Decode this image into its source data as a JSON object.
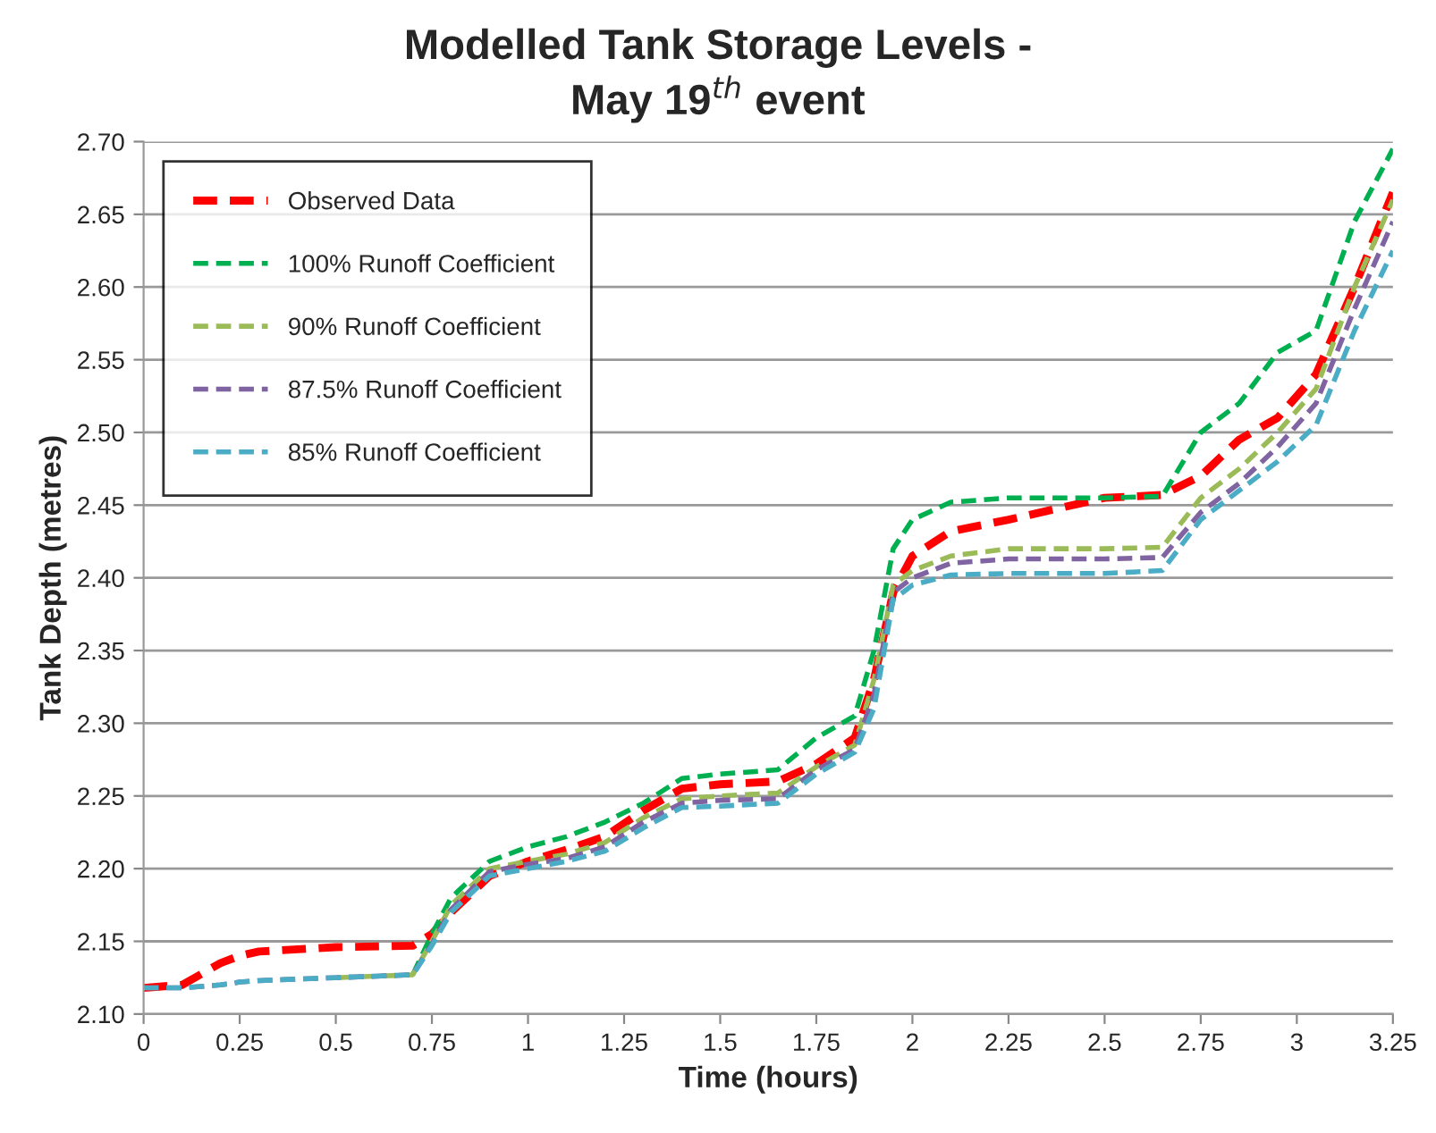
{
  "chart_data": {
    "type": "line",
    "title": "Modelled Tank Storage Levels -\nMay 19$^{th}$ event",
    "xlabel": "Time (hours)",
    "ylabel": "Tank Depth (metres)",
    "x": [
      0,
      0.1,
      0.2,
      0.25,
      0.3,
      0.5,
      0.7,
      0.75,
      0.8,
      0.9,
      1.0,
      1.1,
      1.2,
      1.3,
      1.4,
      1.5,
      1.65,
      1.75,
      1.85,
      1.9,
      1.95,
      2.0,
      2.1,
      2.25,
      2.5,
      2.65,
      2.75,
      2.85,
      2.95,
      3.05,
      3.15,
      3.25
    ],
    "series": [
      {
        "name": "Observed Data",
        "color": "#ff0000",
        "values": [
          2.118,
          2.12,
          2.135,
          2.14,
          2.143,
          2.146,
          2.147,
          2.155,
          2.17,
          2.195,
          2.205,
          2.213,
          2.222,
          2.24,
          2.255,
          2.258,
          2.26,
          2.272,
          2.29,
          2.33,
          2.39,
          2.415,
          2.432,
          2.44,
          2.455,
          2.457,
          2.47,
          2.495,
          2.51,
          2.54,
          2.6,
          2.665
        ]
      },
      {
        "name": "100% Runoff Coefficient",
        "color": "#00b050",
        "values": [
          null,
          null,
          null,
          null,
          null,
          null,
          2.127,
          2.155,
          2.18,
          2.205,
          2.215,
          2.222,
          2.232,
          2.245,
          2.262,
          2.265,
          2.268,
          2.29,
          2.305,
          2.35,
          2.42,
          2.44,
          2.452,
          2.455,
          2.455,
          2.456,
          2.5,
          2.52,
          2.555,
          2.57,
          2.645,
          2.695
        ]
      },
      {
        "name": "90% Runoff Coefficient",
        "color": "#9bbb59",
        "values": [
          null,
          null,
          null,
          null,
          null,
          2.125,
          2.127,
          2.15,
          2.175,
          2.2,
          2.205,
          2.21,
          2.218,
          2.235,
          2.248,
          2.25,
          2.252,
          2.27,
          2.285,
          2.33,
          2.395,
          2.405,
          2.415,
          2.42,
          2.42,
          2.421,
          2.455,
          2.475,
          2.5,
          2.53,
          2.6,
          2.66
        ]
      },
      {
        "name": "87.5% Runoff Coefficient",
        "color": "#8064a2",
        "values": [
          2.118,
          2.118,
          2.12,
          2.122,
          2.123,
          2.125,
          2.127,
          2.148,
          2.172,
          2.198,
          2.203,
          2.207,
          2.215,
          2.232,
          2.245,
          2.247,
          2.248,
          2.268,
          2.282,
          2.32,
          2.39,
          2.4,
          2.41,
          2.413,
          2.413,
          2.414,
          2.445,
          2.465,
          2.49,
          2.52,
          2.585,
          2.645
        ]
      },
      {
        "name": "85% Runoff Coefficient",
        "color": "#4bacc6",
        "values": [
          2.118,
          2.118,
          2.12,
          2.122,
          2.123,
          2.125,
          2.127,
          2.147,
          2.17,
          2.195,
          2.2,
          2.205,
          2.212,
          2.228,
          2.242,
          2.243,
          2.245,
          2.265,
          2.28,
          2.31,
          2.385,
          2.395,
          2.402,
          2.403,
          2.403,
          2.405,
          2.44,
          2.46,
          2.48,
          2.505,
          2.57,
          2.625
        ]
      }
    ],
    "xlim": [
      0,
      3.25
    ],
    "xticks": [
      0,
      0.25,
      0.5,
      0.75,
      1,
      1.25,
      1.5,
      1.75,
      2,
      2.25,
      2.5,
      2.75,
      3,
      3.25
    ],
    "ylim": [
      2.1,
      2.7
    ],
    "yticks": [
      {
        "value": 2.1,
        "label": "2.10"
      },
      {
        "value": 2.15,
        "label": "2.15"
      },
      {
        "value": 2.2,
        "label": "2.20"
      },
      {
        "value": 2.25,
        "label": "2.25"
      },
      {
        "value": 2.3,
        "label": "2.30"
      },
      {
        "value": 2.35,
        "label": "2.35"
      },
      {
        "value": 2.4,
        "label": "2.40"
      },
      {
        "value": 2.45,
        "label": "2.45"
      },
      {
        "value": 2.5,
        "label": "2.50"
      },
      {
        "value": 2.55,
        "label": "2.55"
      },
      {
        "value": 2.6,
        "label": "2.60"
      },
      {
        "value": 2.65,
        "label": "2.65"
      },
      {
        "value": 2.7,
        "label": "2.70"
      }
    ],
    "grid": "y",
    "legend": "top left",
    "line_style": "dashed",
    "marker": "none"
  }
}
